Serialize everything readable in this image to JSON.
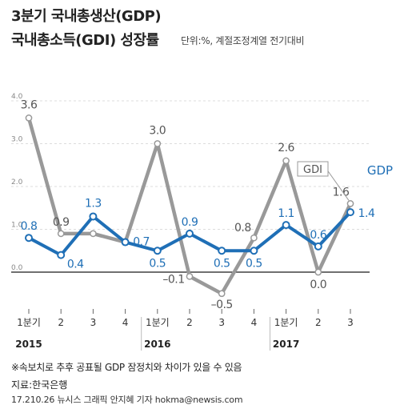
{
  "header": {
    "title_line1": "3분기 국내총생산(GDP)",
    "title_line2": "국내총소득(GDI) 성장률",
    "unit_note": "단위:%, 계절조정계열 전기대비"
  },
  "footer": {
    "note": "※속보치로 추후 공표될 GDP 잠정치와 차이가 있을 수 있음",
    "source": "지료:한국은행",
    "credit": "17.210.26 뉴시스 그래픽 안지혜 기자 hokma@newsis.com"
  },
  "colors": {
    "gdp": "#1f6fb6",
    "gdi": "#999999",
    "zero_line": "#1a1a1a"
  },
  "chart_data": {
    "type": "line",
    "categories": [
      "1분기",
      "2",
      "3",
      "4",
      "1분기",
      "2",
      "3",
      "4",
      "1분기",
      "2",
      "3"
    ],
    "years": [
      {
        "label": "2015",
        "index": 0
      },
      {
        "label": "2016",
        "index": 4
      },
      {
        "label": "2017",
        "index": 8
      }
    ],
    "y_ticks": [
      "4.0",
      "3.0",
      "2.0",
      "1.0",
      "0.0"
    ],
    "ylim": [
      -1.0,
      4.0
    ],
    "grid": true,
    "series": [
      {
        "name": "GDI",
        "color": "#999999",
        "values": [
          3.6,
          0.9,
          0.9,
          0.7,
          3.0,
          -0.1,
          -0.5,
          0.8,
          2.6,
          0.0,
          1.6
        ],
        "labels": [
          "3.6",
          "0.9",
          "",
          "",
          "3.0",
          "–0.1",
          "–0.5",
          "0.8",
          "2.6",
          "0.0",
          "1.6"
        ]
      },
      {
        "name": "GDP",
        "color": "#1f6fb6",
        "values": [
          0.8,
          0.4,
          1.3,
          0.7,
          0.5,
          0.9,
          0.5,
          0.5,
          1.1,
          0.6,
          1.4
        ],
        "labels": [
          "0.8",
          "0.4",
          "1.3",
          "0.7",
          "0.5",
          "0.9",
          "0.5",
          "0.5",
          "1.1",
          "0.6",
          "1.4"
        ]
      }
    ]
  }
}
